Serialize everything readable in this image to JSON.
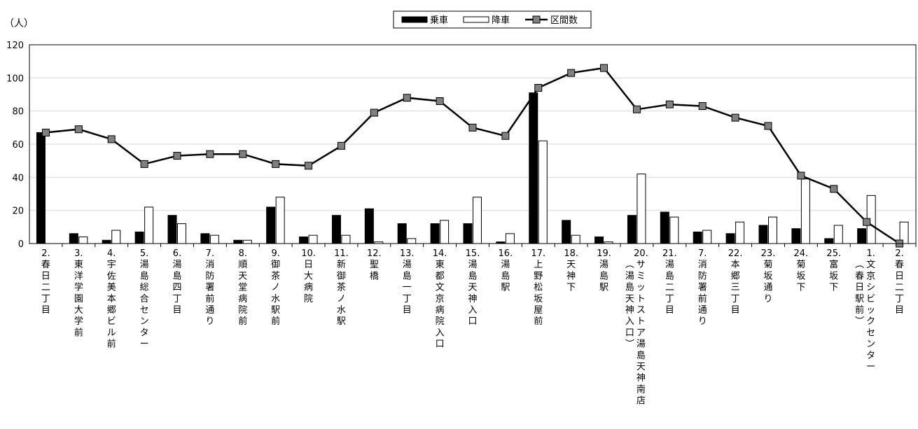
{
  "chart_data": {
    "type": "bar",
    "ylabel": "（人）",
    "ylim": [
      0,
      120
    ],
    "yticks": [
      0,
      20,
      40,
      60,
      80,
      100,
      120
    ],
    "grid": true,
    "legend_position": "top-center",
    "categories": [
      "2.春日二丁目",
      "3.東洋学園大学前",
      "4.宇佐美本郷ビル前",
      "5.湯島総合センター",
      "6.湯島四丁目",
      "7.消防署前通り",
      "8.順天堂病院前",
      "9.御茶ノ水駅前",
      "10.日大病院",
      "11.新御茶ノ水駅",
      "12.聖橋",
      "13.湯島一丁目",
      "14.東都文京病院入口",
      "15.湯島天神入口",
      "16.湯島駅",
      "17.上野松坂屋前",
      "18.天神下",
      "19.湯島駅",
      "20.サミットストア湯島天神南店（湯島天神入口）",
      "21.湯島二丁目",
      "7.消防署前通り",
      "22.本郷三丁目",
      "23.菊坂通り",
      "24.菊坂下",
      "25.富坂下",
      "1.文京シビックセンター（春日駅前）",
      "2.春日二丁目"
    ],
    "series": [
      {
        "name": "乗車",
        "kind": "bar",
        "color": "#000000",
        "values": [
          67,
          6,
          2,
          7,
          17,
          6,
          2,
          22,
          4,
          17,
          21,
          12,
          12,
          12,
          1,
          91,
          14,
          4,
          17,
          19,
          7,
          6,
          11,
          9,
          3,
          9,
          0
        ]
      },
      {
        "name": "降車",
        "kind": "bar",
        "color": "#ffffff",
        "values": [
          0,
          4,
          8,
          22,
          12,
          5,
          2,
          28,
          5,
          5,
          1,
          3,
          14,
          28,
          6,
          62,
          5,
          1,
          42,
          16,
          8,
          13,
          16,
          39,
          11,
          29,
          13
        ]
      },
      {
        "name": "区間数",
        "kind": "line",
        "color": "#000000",
        "marker_color": "#808080",
        "values": [
          67,
          69,
          63,
          48,
          53,
          54,
          54,
          48,
          47,
          59,
          79,
          88,
          86,
          70,
          65,
          94,
          103,
          106,
          81,
          84,
          83,
          76,
          71,
          41,
          33,
          13,
          0
        ]
      }
    ]
  }
}
